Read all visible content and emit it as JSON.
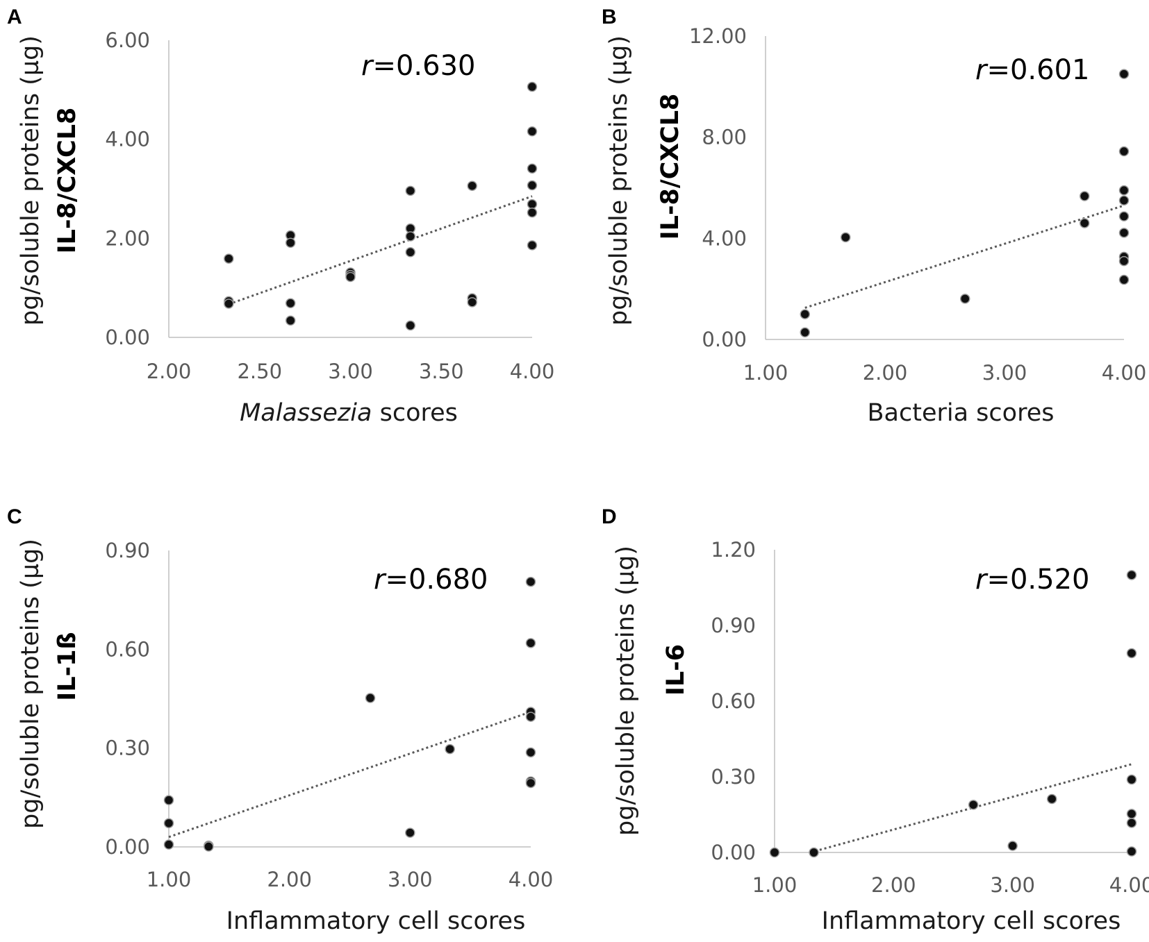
{
  "chart_data": [
    {
      "type": "scatter",
      "panel_label": "A",
      "ylabel_prefix": "pg/soluble proteins (µg)",
      "ylabel_bold": "IL-8/CXCL8",
      "xlabel_italic": "Malassezia",
      "xlabel_rest": " scores",
      "r_symbol": "r",
      "r_value": "=0.630",
      "xlim": [
        2.0,
        4.0
      ],
      "ylim": [
        0.0,
        6.0
      ],
      "xticks": [
        "2.00",
        "2.50",
        "3.00",
        "3.50",
        "4.00"
      ],
      "yticks": [
        "0.00",
        "2.00",
        "4.00",
        "6.00"
      ],
      "points": [
        {
          "x": 2.33,
          "y": 1.59
        },
        {
          "x": 2.33,
          "y": 0.73
        },
        {
          "x": 2.33,
          "y": 0.68
        },
        {
          "x": 2.67,
          "y": 2.06
        },
        {
          "x": 2.67,
          "y": 1.91
        },
        {
          "x": 2.67,
          "y": 0.69
        },
        {
          "x": 2.67,
          "y": 0.34
        },
        {
          "x": 3.0,
          "y": 1.31
        },
        {
          "x": 3.0,
          "y": 1.26
        },
        {
          "x": 3.0,
          "y": 1.22
        },
        {
          "x": 3.33,
          "y": 2.96
        },
        {
          "x": 3.33,
          "y": 2.2
        },
        {
          "x": 3.33,
          "y": 2.04
        },
        {
          "x": 3.33,
          "y": 1.72
        },
        {
          "x": 3.33,
          "y": 0.24
        },
        {
          "x": 3.67,
          "y": 3.06
        },
        {
          "x": 3.67,
          "y": 0.79
        },
        {
          "x": 3.67,
          "y": 0.71
        },
        {
          "x": 4.0,
          "y": 5.06
        },
        {
          "x": 4.0,
          "y": 4.16
        },
        {
          "x": 4.0,
          "y": 3.41
        },
        {
          "x": 4.0,
          "y": 3.07
        },
        {
          "x": 4.0,
          "y": 2.69
        },
        {
          "x": 4.0,
          "y": 2.52
        },
        {
          "x": 4.0,
          "y": 1.86
        }
      ],
      "trendline": [
        {
          "x": 2.33,
          "y": 0.67
        },
        {
          "x": 4.0,
          "y": 2.85
        }
      ]
    },
    {
      "type": "scatter",
      "panel_label": "B",
      "ylabel_prefix": "pg/soluble proteins (µg)",
      "ylabel_bold": "IL-8/CXCL8",
      "xlabel_italic": "",
      "xlabel_rest": "Bacteria scores",
      "r_symbol": "r",
      "r_value": "=0.601",
      "xlim": [
        1.0,
        4.0
      ],
      "ylim": [
        0.0,
        12.0
      ],
      "xticks": [
        "1.00",
        "2.00",
        "3.00",
        "4.00"
      ],
      "yticks": [
        "0.00",
        "4.00",
        "8.00",
        "12.00"
      ],
      "points": [
        {
          "x": 1.33,
          "y": 1.0
        },
        {
          "x": 1.33,
          "y": 0.28
        },
        {
          "x": 1.67,
          "y": 4.04
        },
        {
          "x": 2.67,
          "y": 1.61
        },
        {
          "x": 3.67,
          "y": 5.67
        },
        {
          "x": 3.67,
          "y": 4.6
        },
        {
          "x": 4.0,
          "y": 10.5
        },
        {
          "x": 4.0,
          "y": 7.44
        },
        {
          "x": 4.0,
          "y": 5.9
        },
        {
          "x": 4.0,
          "y": 5.5
        },
        {
          "x": 4.0,
          "y": 4.87
        },
        {
          "x": 4.0,
          "y": 4.22
        },
        {
          "x": 4.0,
          "y": 3.27
        },
        {
          "x": 4.0,
          "y": 3.1
        },
        {
          "x": 4.0,
          "y": 2.36
        }
      ],
      "trendline": [
        {
          "x": 1.33,
          "y": 1.25
        },
        {
          "x": 4.0,
          "y": 5.3
        }
      ]
    },
    {
      "type": "scatter",
      "panel_label": "C",
      "ylabel_prefix": "pg/soluble proteins (µg)",
      "ylabel_bold": "IL-1ß",
      "xlabel_italic": "",
      "xlabel_rest": "Inflammatory cell scores",
      "r_symbol": "r",
      "r_value": "=0.680",
      "xlim": [
        1.0,
        4.0
      ],
      "ylim": [
        0.0,
        0.9
      ],
      "xticks": [
        "1.00",
        "2.00",
        "3.00",
        "4.00"
      ],
      "yticks": [
        "0.00",
        "0.30",
        "0.60",
        "0.90"
      ],
      "points": [
        {
          "x": 1.0,
          "y": 0.142
        },
        {
          "x": 1.0,
          "y": 0.072
        },
        {
          "x": 1.0,
          "y": 0.007
        },
        {
          "x": 1.33,
          "y": 0.004
        },
        {
          "x": 1.33,
          "y": 0.001
        },
        {
          "x": 2.67,
          "y": 0.452
        },
        {
          "x": 3.0,
          "y": 0.043
        },
        {
          "x": 3.33,
          "y": 0.297
        },
        {
          "x": 4.0,
          "y": 0.805
        },
        {
          "x": 4.0,
          "y": 0.619
        },
        {
          "x": 4.0,
          "y": 0.41
        },
        {
          "x": 4.0,
          "y": 0.395
        },
        {
          "x": 4.0,
          "y": 0.287
        },
        {
          "x": 4.0,
          "y": 0.199
        },
        {
          "x": 4.0,
          "y": 0.194
        }
      ],
      "trendline": [
        {
          "x": 1.0,
          "y": 0.03
        },
        {
          "x": 4.0,
          "y": 0.41
        }
      ]
    },
    {
      "type": "scatter",
      "panel_label": "D",
      "ylabel_prefix": "pg/soluble proteins (µg)",
      "ylabel_bold": "IL-6",
      "xlabel_italic": "",
      "xlabel_rest": "Inflammatory cell scores",
      "r_symbol": "r",
      "r_value": "=0.520",
      "xlim": [
        1.0,
        4.0
      ],
      "ylim": [
        0.0,
        1.2
      ],
      "xticks": [
        "1.00",
        "2.00",
        "3.00",
        "4.00"
      ],
      "yticks": [
        "0.00",
        "0.30",
        "0.60",
        "0.90",
        "1.20"
      ],
      "points": [
        {
          "x": 1.0,
          "y": 0.0
        },
        {
          "x": 1.33,
          "y": 0.0
        },
        {
          "x": 2.67,
          "y": 0.189
        },
        {
          "x": 3.0,
          "y": 0.026
        },
        {
          "x": 3.33,
          "y": 0.212
        },
        {
          "x": 4.0,
          "y": 1.1
        },
        {
          "x": 4.0,
          "y": 0.79
        },
        {
          "x": 4.0,
          "y": 0.289
        },
        {
          "x": 4.0,
          "y": 0.153
        },
        {
          "x": 4.0,
          "y": 0.117
        },
        {
          "x": 4.0,
          "y": 0.004
        }
      ],
      "trendline": [
        {
          "x": 1.3,
          "y": 0.0
        },
        {
          "x": 4.0,
          "y": 0.35
        }
      ]
    }
  ]
}
